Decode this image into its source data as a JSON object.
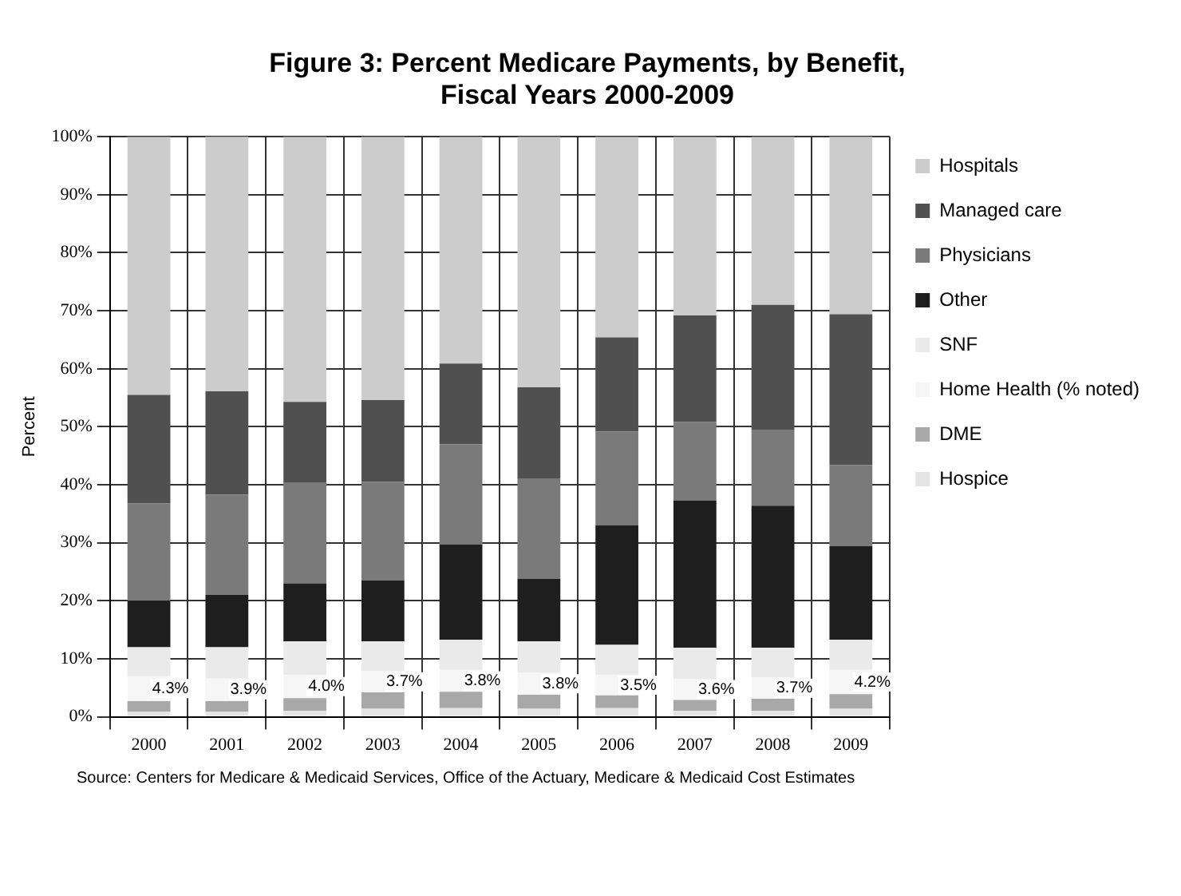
{
  "chart_data": {
    "type": "bar",
    "stacked": true,
    "title": "Figure 3: Percent Medicare Payments, by Benefit, Fiscal Years 2000-2009",
    "ylabel": "Percent",
    "categories": [
      "2000",
      "2001",
      "2002",
      "2003",
      "2004",
      "2005",
      "2006",
      "2007",
      "2008",
      "2009"
    ],
    "series": [
      {
        "name": "Hospice",
        "color": "#e4e4e4",
        "values": [
          0.9,
          0.9,
          1.0,
          1.4,
          1.5,
          1.4,
          1.5,
          1.0,
          1.0,
          1.4
        ]
      },
      {
        "name": "DME",
        "color": "#a8a8a8",
        "values": [
          1.8,
          1.8,
          2.2,
          2.8,
          2.8,
          2.4,
          2.2,
          1.9,
          2.1,
          2.5
        ]
      },
      {
        "name": "Home Health (% noted)",
        "color": "#f6f6f6",
        "values": [
          4.3,
          3.9,
          4.0,
          3.7,
          3.8,
          3.8,
          3.5,
          3.6,
          3.7,
          4.2
        ],
        "value_labels": [
          "4.3%",
          "3.9%",
          "4.0%",
          "3.7%",
          "3.8%",
          "3.8%",
          "3.5%",
          "3.6%",
          "3.7%",
          "4.2%"
        ]
      },
      {
        "name": "SNF",
        "color": "#eaeaea",
        "values": [
          5.0,
          5.4,
          5.8,
          5.1,
          5.2,
          5.4,
          5.2,
          5.4,
          5.1,
          5.2
        ]
      },
      {
        "name": "Other",
        "color": "#1e1e1e",
        "values": [
          8.0,
          9.0,
          10.0,
          10.5,
          16.4,
          10.8,
          20.6,
          25.4,
          24.5,
          16.1
        ]
      },
      {
        "name": "Physicians",
        "color": "#7a7a7a",
        "values": [
          16.8,
          17.3,
          17.3,
          17.0,
          17.3,
          17.3,
          16.2,
          13.5,
          13.1,
          14.0
        ]
      },
      {
        "name": "Managed care",
        "color": "#505050",
        "values": [
          18.7,
          17.8,
          14.0,
          14.1,
          13.9,
          15.7,
          16.2,
          18.4,
          21.5,
          26.0
        ]
      },
      {
        "name": "Hospitals",
        "color": "#cccccc",
        "values": [
          44.5,
          44.0,
          45.7,
          45.4,
          39.1,
          43.2,
          34.6,
          30.8,
          29.0,
          30.8
        ]
      }
    ],
    "ylim": [
      0,
      100
    ],
    "yticks": [
      {
        "value": 0,
        "label": "0%"
      },
      {
        "value": 10,
        "label": "10%"
      },
      {
        "value": 20,
        "label": "20%"
      },
      {
        "value": 30,
        "label": "30%"
      },
      {
        "value": 40,
        "label": "40%"
      },
      {
        "value": 50,
        "label": "50%"
      },
      {
        "value": 60,
        "label": "60%"
      },
      {
        "value": 70,
        "label": "70%"
      },
      {
        "value": 80,
        "label": "80%"
      },
      {
        "value": 90,
        "label": "90%"
      },
      {
        "value": 100,
        "label": "100%"
      }
    ],
    "grid": true,
    "legend": "right",
    "annotations": [
      "Source: Centers for Medicare & Medicaid Services, Office of the Actuary, Medicare & Medicaid Cost Estimates"
    ]
  }
}
